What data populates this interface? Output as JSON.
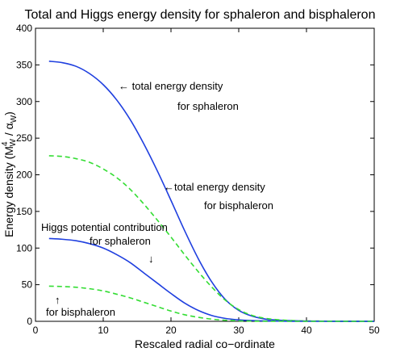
{
  "chart_data": {
    "type": "line",
    "title": "Total and Higgs energy density for sphaleron and bisphaleron",
    "xlabel": "Rescaled radial co−ordinate",
    "ylabel_main": "Energy density (M",
    "ylabel_sup": "4",
    "ylabel_sub": "W",
    "ylabel_mid": " / α",
    "ylabel_sub2": "W",
    "ylabel_end": ")",
    "xlim": [
      0,
      50
    ],
    "ylim": [
      0,
      400
    ],
    "xticks": [
      0,
      10,
      20,
      30,
      40,
      50
    ],
    "yticks": [
      0,
      50,
      100,
      150,
      200,
      250,
      300,
      350,
      400
    ],
    "grid": false,
    "series": [
      {
        "style": "solid",
        "color": "#1f3fdf",
        "x": [
          2,
          4,
          6,
          8,
          10,
          12,
          14,
          16,
          18,
          20,
          22,
          24,
          26,
          28,
          30,
          32,
          34,
          36,
          38,
          40,
          45,
          50
        ],
        "y": [
          355,
          353,
          348,
          338,
          323,
          302,
          275,
          242,
          205,
          165,
          124,
          86,
          54,
          30,
          15,
          7,
          3,
          1.5,
          0.8,
          0.4,
          0.1,
          0
        ]
      },
      {
        "style": "dashed",
        "color": "#33dd33",
        "x": [
          2,
          4,
          6,
          8,
          10,
          12,
          14,
          16,
          18,
          20,
          22,
          24,
          26,
          28,
          30,
          32,
          34,
          36,
          38,
          40,
          45,
          50
        ],
        "y": [
          226,
          225,
          222,
          217,
          208,
          196,
          180,
          160,
          138,
          115,
          91,
          68,
          47,
          29,
          16,
          8,
          4,
          2,
          1,
          0.5,
          0.1,
          0
        ]
      },
      {
        "style": "solid",
        "color": "#1f3fdf",
        "x": [
          2,
          4,
          6,
          8,
          10,
          12,
          14,
          16,
          18,
          20,
          22,
          24,
          26,
          28,
          30,
          32,
          34,
          36,
          38,
          40,
          45,
          50
        ],
        "y": [
          113,
          112,
          110,
          106,
          100,
          91,
          80,
          66,
          52,
          38,
          25,
          15,
          8,
          4,
          2,
          1,
          0.5,
          0.3,
          0.1,
          0,
          0,
          0
        ]
      },
      {
        "style": "dashed",
        "color": "#33dd33",
        "x": [
          2,
          4,
          6,
          8,
          10,
          12,
          14,
          16,
          18,
          20,
          22,
          24,
          26,
          28,
          30,
          32,
          34,
          36,
          38,
          40,
          45,
          50
        ],
        "y": [
          48,
          47.5,
          46.5,
          44.5,
          41.5,
          37,
          32,
          26,
          20,
          14,
          9,
          5.5,
          3,
          1.5,
          0.7,
          0.3,
          0.1,
          0,
          0,
          0,
          0,
          0
        ]
      }
    ],
    "annotations": [
      {
        "key": "a1",
        "text": "← total energy density"
      },
      {
        "key": "a2",
        "text": "for sphaleron"
      },
      {
        "key": "a3",
        "text": "←total energy density"
      },
      {
        "key": "a4",
        "text": "for bisphaleron"
      },
      {
        "key": "a5",
        "text": "Higgs potential contribution"
      },
      {
        "key": "a6",
        "text": "for sphaleron"
      },
      {
        "key": "a7",
        "text": "↓"
      },
      {
        "key": "a8",
        "text": "↑"
      },
      {
        "key": "a9",
        "text": "for bisphaleron"
      }
    ]
  }
}
